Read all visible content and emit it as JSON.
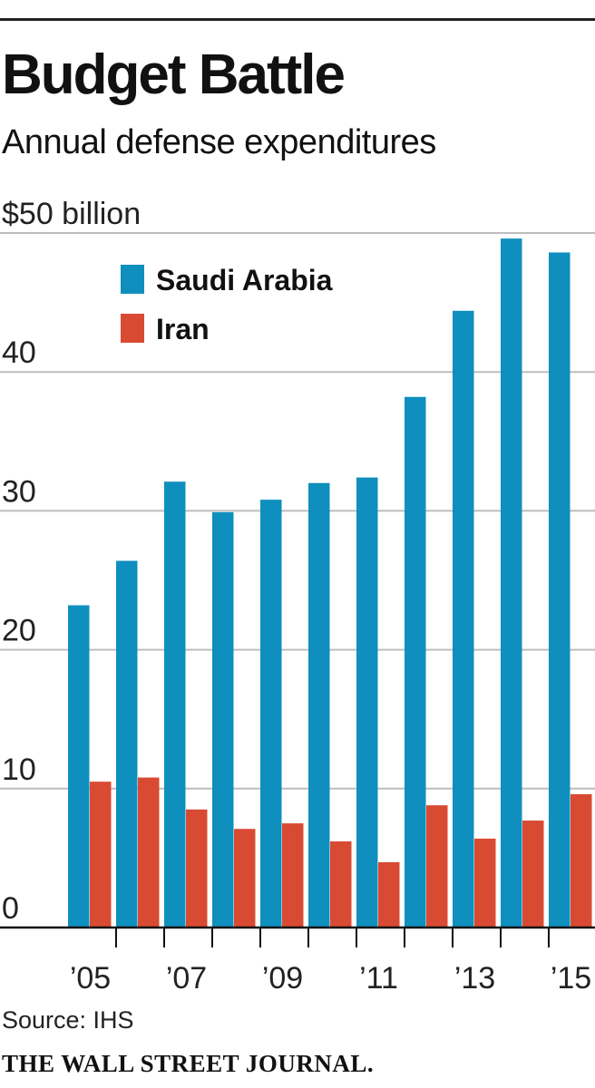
{
  "title": "Budget Battle",
  "subtitle": "Annual defense expenditures",
  "source": "Source: IHS",
  "publisher": "THE WALL STREET JOURNAL.",
  "chart_data": {
    "type": "bar",
    "title": "Budget Battle",
    "subtitle": "Annual defense expenditures",
    "unit_label": "$50 billion",
    "xlabel": "",
    "ylabel": "",
    "ylim": [
      0,
      50
    ],
    "y_ticks": [
      {
        "value": 0,
        "label": "0"
      },
      {
        "value": 10,
        "label": "10"
      },
      {
        "value": 20,
        "label": "20"
      },
      {
        "value": 30,
        "label": "30"
      },
      {
        "value": 40,
        "label": "40"
      },
      {
        "value": 50,
        "label": "$50 billion"
      }
    ],
    "grid": true,
    "legend_position": "top-left",
    "categories": [
      "2005",
      "2006",
      "2007",
      "2008",
      "2009",
      "2010",
      "2011",
      "2012",
      "2013",
      "2014",
      "2015"
    ],
    "x_tick_labels": [
      "’05",
      "",
      "’07",
      "",
      "’09",
      "",
      "’11",
      "",
      "’13",
      "",
      "’15"
    ],
    "series": [
      {
        "name": "Saudi Arabia",
        "color": "#0f8fbd",
        "values": [
          23.2,
          26.4,
          32.1,
          29.9,
          30.8,
          32.0,
          32.4,
          38.2,
          44.4,
          49.6,
          48.6
        ]
      },
      {
        "name": "Iran",
        "color": "#d94a33",
        "values": [
          10.5,
          10.8,
          8.5,
          7.1,
          7.5,
          6.2,
          4.7,
          8.8,
          6.4,
          7.7,
          9.6
        ]
      }
    ]
  }
}
